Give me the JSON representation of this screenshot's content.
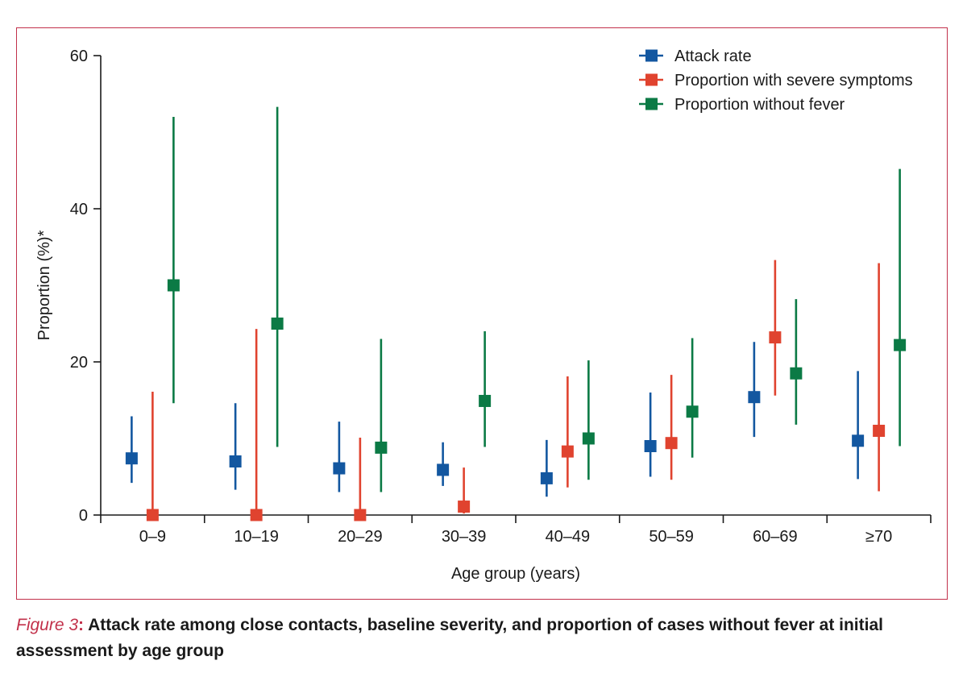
{
  "caption": {
    "figure_number": "Figure 3",
    "colon": ":",
    "title": " Attack rate among close contacts, baseline severity, and proportion of cases without fever at initial assessment by age group",
    "footnote": ""
  },
  "chart_data": {
    "type": "scatter",
    "title": "",
    "xlabel": "Age group (years)",
    "ylabel": "Proportion (%)*",
    "ylim": [
      0,
      60
    ],
    "yticks": [
      0,
      20,
      40,
      60
    ],
    "categories": [
      "0–9",
      "10–19",
      "20–29",
      "30–39",
      "40–49",
      "50–59",
      "60–69",
      "≥70"
    ],
    "legend_position": "top-right",
    "error_bars": true,
    "series": [
      {
        "name": "Attack rate",
        "color": "#1357a0",
        "values": [
          7.4,
          7.0,
          6.1,
          5.9,
          4.8,
          9.0,
          15.4,
          9.7
        ],
        "lower": [
          4.2,
          3.3,
          3.0,
          3.8,
          2.4,
          5.0,
          10.2,
          4.7
        ],
        "upper": [
          12.9,
          14.6,
          12.2,
          9.5,
          9.8,
          16.0,
          22.6,
          18.8
        ]
      },
      {
        "name": "Proportion with severe symptoms",
        "color": "#e0432f",
        "values": [
          0,
          0,
          0,
          1.1,
          8.3,
          9.4,
          23.2,
          11.0
        ],
        "lower": [
          0,
          0,
          0,
          0.2,
          3.6,
          4.6,
          15.6,
          3.1
        ],
        "upper": [
          16.1,
          24.3,
          10.1,
          6.2,
          18.1,
          18.3,
          33.3,
          32.9
        ]
      },
      {
        "name": "Proportion without fever",
        "color": "#0b7a45",
        "values": [
          30.0,
          25.0,
          8.8,
          14.9,
          10.0,
          13.5,
          18.5,
          22.2
        ],
        "lower": [
          14.6,
          8.9,
          3.0,
          8.9,
          4.6,
          7.5,
          11.8,
          9.0
        ],
        "upper": [
          52.0,
          53.3,
          23.0,
          24.0,
          20.2,
          23.1,
          28.2,
          45.2
        ]
      }
    ]
  }
}
